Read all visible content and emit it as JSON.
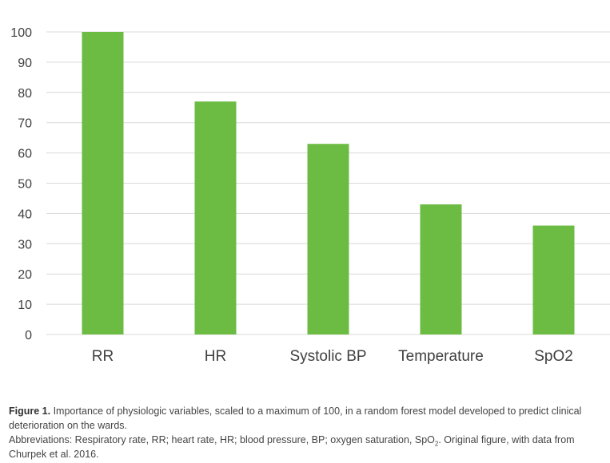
{
  "chart_data": {
    "type": "bar",
    "categories": [
      "RR",
      "HR",
      "Systolic BP",
      "Temperature",
      "SpO2"
    ],
    "values": [
      100,
      77,
      63,
      43,
      36
    ],
    "ylim": [
      0,
      100
    ],
    "yticks": [
      0,
      10,
      20,
      30,
      40,
      50,
      60,
      70,
      80,
      90,
      100
    ],
    "grid": true,
    "bar_color": "#6cbc44",
    "grid_color": "#d9d9d9",
    "title": "",
    "xlabel": "",
    "ylabel": ""
  },
  "caption": {
    "figure_label": "Figure 1.",
    "text": " Importance of physiologic variables, scaled to a maximum of 100, in a random forest model developed to predict clinical deterioration on the wards.",
    "abbrev_before": "Abbreviations: Respiratory rate, RR; heart rate, HR; blood pressure, BP; oxygen saturation, SpO",
    "abbrev_sub": "2",
    "abbrev_after": ". Original figure, with data from Churpek et al. 2016."
  }
}
